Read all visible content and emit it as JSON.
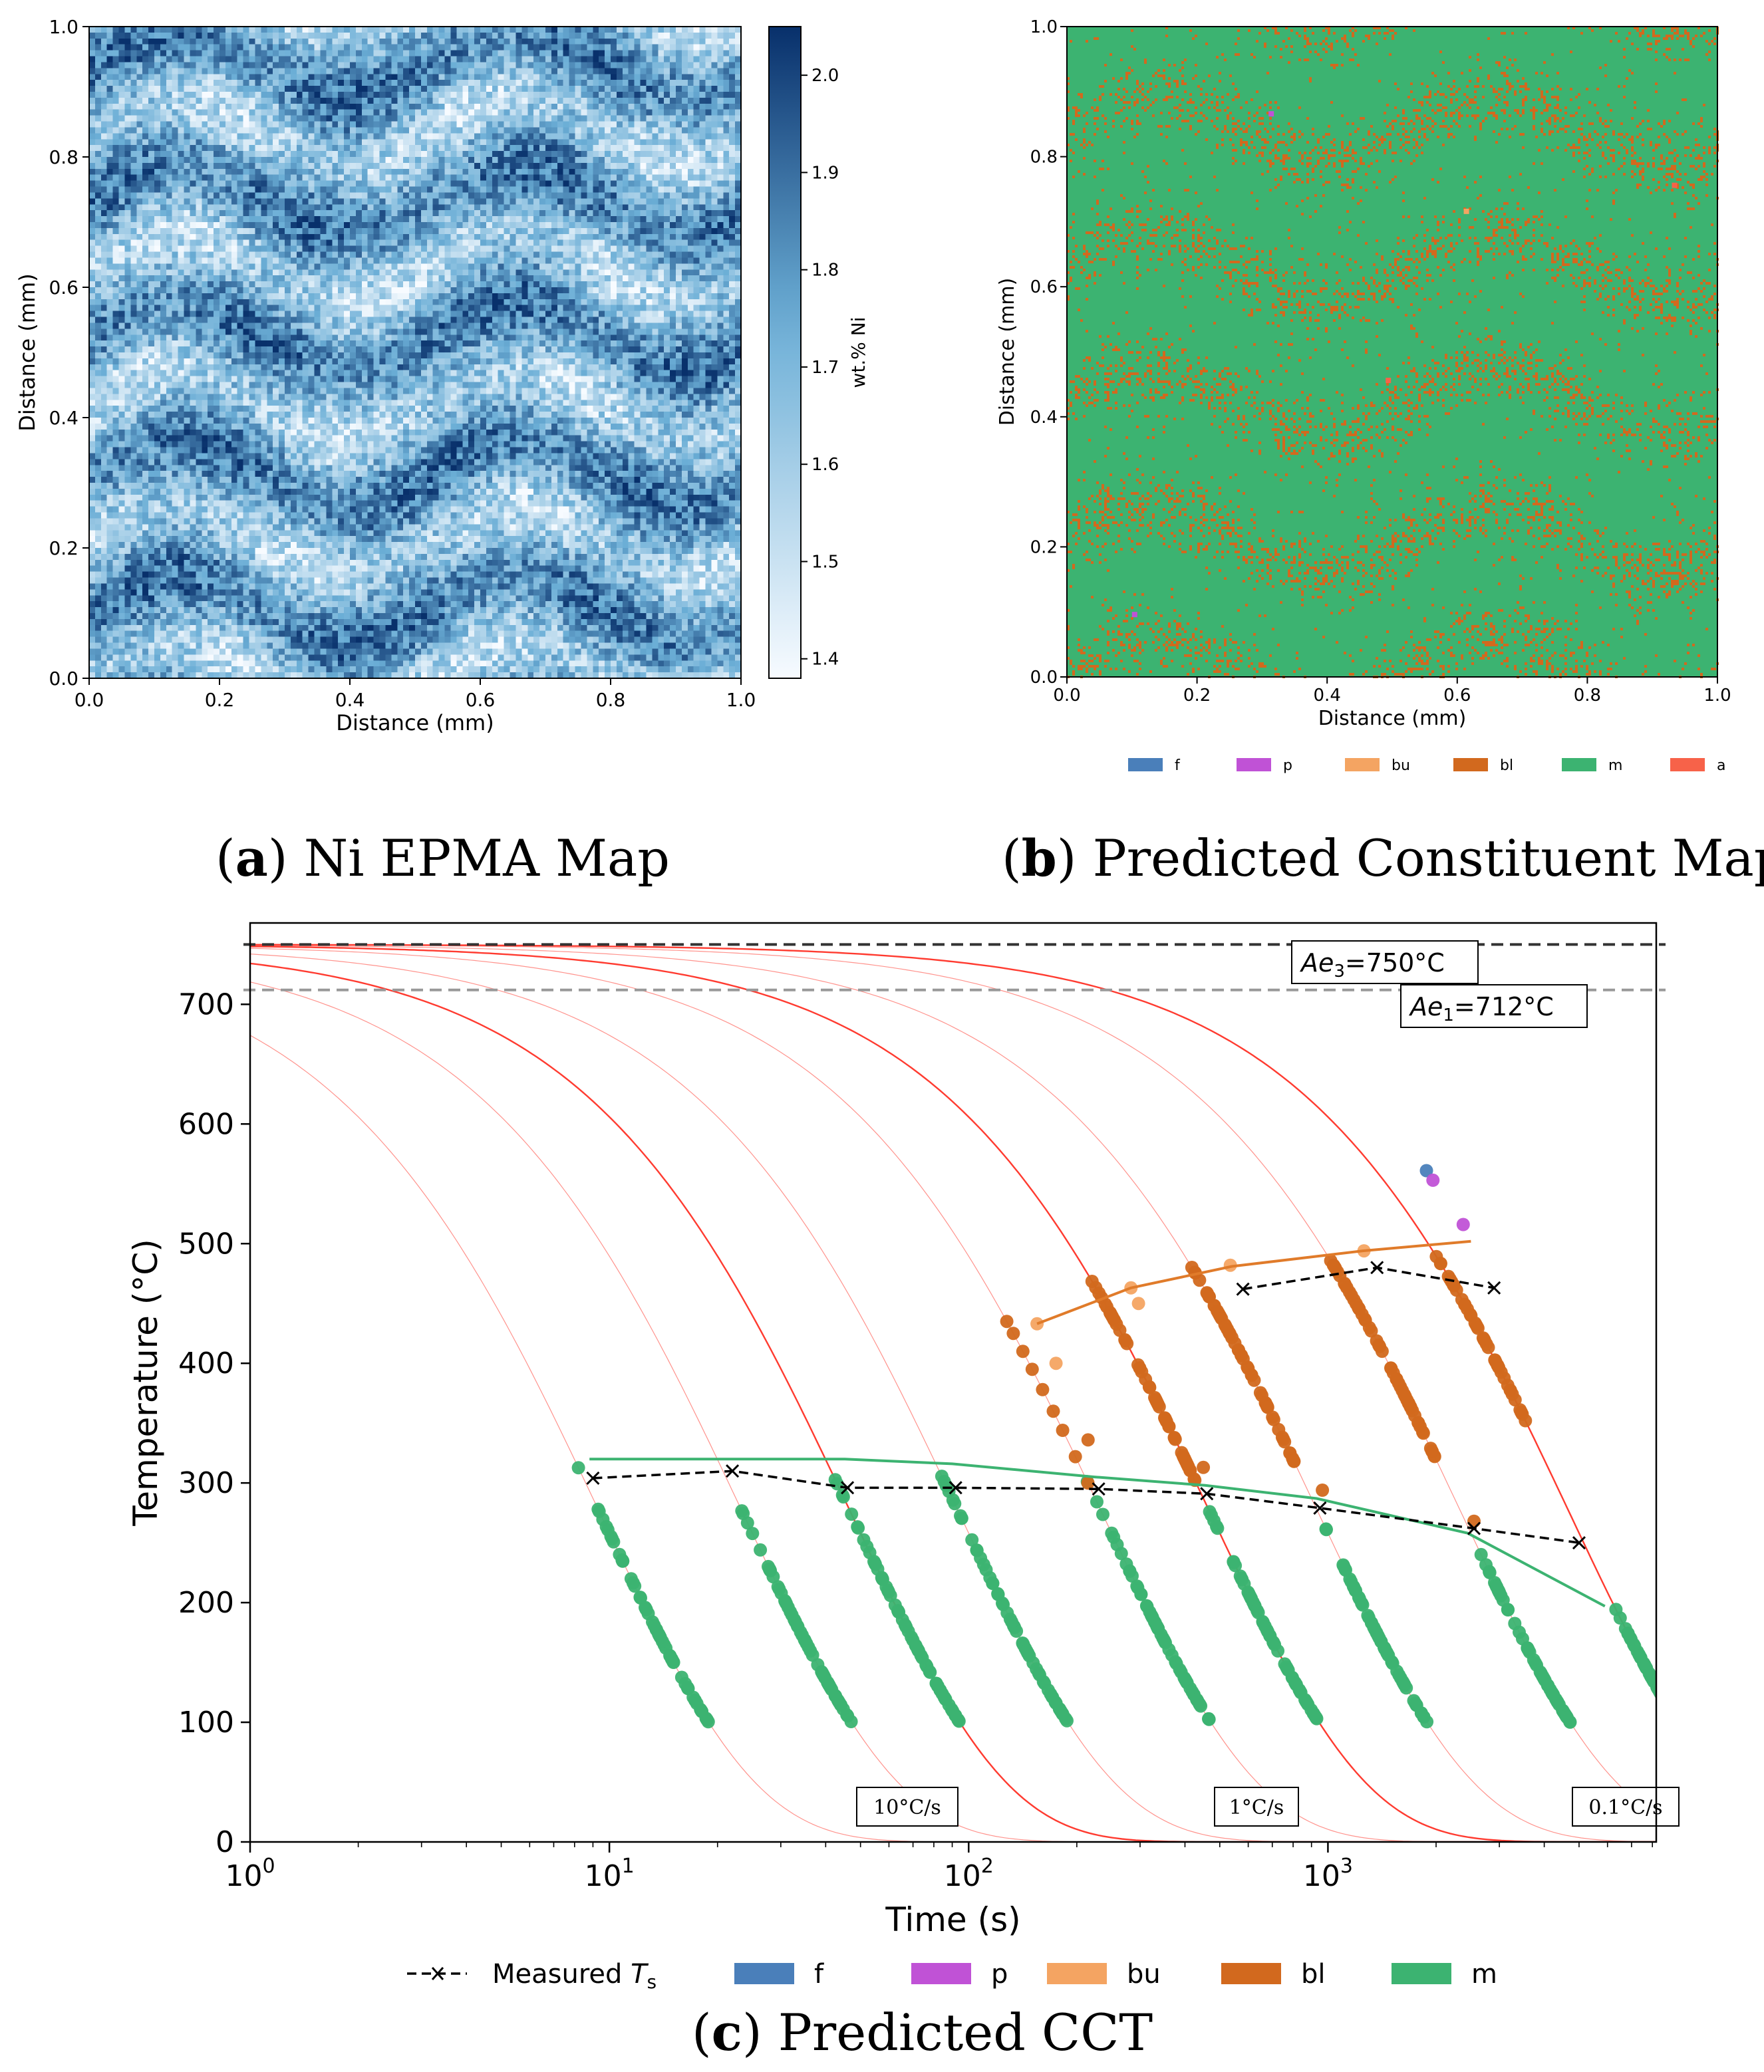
{
  "captions": {
    "a_letter": "a",
    "a_text": " Ni EPMA Map",
    "b_letter": "b",
    "b_text": " Predicted Constituent Map",
    "c_letter": "c",
    "c_text": " Predicted CCT"
  },
  "colors": {
    "f": "#4a7fba",
    "p": "#c052d6",
    "bu": "#f4a462",
    "bl": "#d2691e",
    "m": "#3cb371",
    "a": "#f76249",
    "measured": "#000000",
    "cooling_curve": "#ff3b30",
    "ae3_line": "#333333",
    "ae1_line": "#999999"
  },
  "chart_data": [
    {
      "id": "a",
      "type": "heatmap",
      "title": "",
      "xlabel": "Distance (mm)",
      "ylabel": "Distance (mm)",
      "xlim": [
        0,
        1
      ],
      "ylim": [
        0,
        1
      ],
      "xticks": [
        "0.0",
        "0.2",
        "0.4",
        "0.6",
        "0.8",
        "1.0"
      ],
      "yticks": [
        "0.0",
        "0.2",
        "0.4",
        "0.6",
        "0.8",
        "1.0"
      ],
      "colorbar": {
        "label": "wt.% Ni",
        "range": [
          1.38,
          2.05
        ],
        "ticks": [
          "1.4",
          "1.5",
          "1.6",
          "1.7",
          "1.8",
          "1.9",
          "2.0"
        ],
        "colormap": "Blues"
      },
      "grid": false
    },
    {
      "id": "b",
      "type": "heatmap",
      "title": "",
      "xlabel": "Distance (mm)",
      "ylabel": "Distance (mm)",
      "xlim": [
        0,
        1
      ],
      "ylim": [
        0,
        1
      ],
      "xticks": [
        "0.0",
        "0.2",
        "0.4",
        "0.6",
        "0.8",
        "1.0"
      ],
      "yticks": [
        "0.0",
        "0.2",
        "0.4",
        "0.6",
        "0.8",
        "1.0"
      ],
      "background_class": "m",
      "legend": [
        "f",
        "p",
        "bu",
        "bl",
        "m",
        "a"
      ],
      "legend_placement": "bottom",
      "grid": false
    },
    {
      "id": "c",
      "type": "scatter",
      "title": "",
      "xlabel": "Time (s)",
      "ylabel": "Temperature (°C)",
      "xscale": "log",
      "xlim": [
        1,
        8200
      ],
      "ylim": [
        0,
        768
      ],
      "xticks": [
        {
          "v": 1,
          "b": "10",
          "e": "0"
        },
        {
          "v": 10,
          "b": "10",
          "e": "1"
        },
        {
          "v": 100,
          "b": "10",
          "e": "2"
        },
        {
          "v": 1000,
          "b": "10",
          "e": "3"
        }
      ],
      "yticks": [
        0,
        100,
        200,
        300,
        400,
        500,
        600,
        700
      ],
      "hlines": [
        {
          "y": 750,
          "label_main": "Ae",
          "label_sub": "3",
          "label_tail": "=750°C",
          "style": "dark"
        },
        {
          "y": 712,
          "label_main": "Ae",
          "label_sub": "1",
          "label_tail": "=712°C",
          "style": "grey"
        }
      ],
      "cooling_rates": [
        {
          "rate": 50,
          "bold": false
        },
        {
          "rate": 20,
          "bold": false
        },
        {
          "rate": 10,
          "bold": true,
          "label": "10°C/s"
        },
        {
          "rate": 5,
          "bold": false
        },
        {
          "rate": 2,
          "bold": false
        },
        {
          "rate": 1,
          "bold": true,
          "label": "1°C/s"
        },
        {
          "rate": 0.5,
          "bold": false
        },
        {
          "rate": 0.2,
          "bold": false
        },
        {
          "rate": 0.1,
          "bold": true,
          "label": "0.1°C/s"
        }
      ],
      "ms_start": [
        {
          "rate": 50,
          "t": 8.8,
          "T": 320
        },
        {
          "rate": 20,
          "t": 22,
          "T": 320
        },
        {
          "rate": 10,
          "t": 45,
          "T": 320
        },
        {
          "rate": 5,
          "t": 90,
          "T": 316
        },
        {
          "rate": 2,
          "t": 225,
          "T": 305
        },
        {
          "rate": 1,
          "t": 455,
          "T": 298
        },
        {
          "rate": 0.5,
          "t": 930,
          "T": 287
        },
        {
          "rate": 0.2,
          "t": 2450,
          "T": 258
        },
        {
          "rate": 0.1,
          "t": 5900,
          "T": 197
        }
      ],
      "bs_start": [
        {
          "rate": 5,
          "t": 155,
          "T": 433
        },
        {
          "rate": 2,
          "t": 283,
          "T": 463
        },
        {
          "rate": 1,
          "t": 540,
          "T": 481
        },
        {
          "rate": 0.5,
          "t": 1250,
          "T": 494
        },
        {
          "rate": 0.2,
          "t": 2500,
          "T": 502
        }
      ],
      "measured_Ts": [
        {
          "t": 9,
          "T": 304
        },
        {
          "t": 22,
          "T": 310
        },
        {
          "t": 46,
          "T": 296
        },
        {
          "t": 92,
          "T": 296
        },
        {
          "t": 230,
          "T": 295
        },
        {
          "t": 460,
          "T": 291
        },
        {
          "t": 950,
          "T": 279
        },
        {
          "t": 2550,
          "T": 262
        },
        {
          "t": 5000,
          "T": 250
        }
      ],
      "measured_Ts_bainite": [
        {
          "t": 580,
          "T": 462
        },
        {
          "t": 1370,
          "T": 480
        },
        {
          "t": 2900,
          "T": 463
        }
      ],
      "extra_points": [
        {
          "cls": "bu",
          "t": 155,
          "T": 433
        },
        {
          "cls": "bu",
          "t": 175,
          "T": 400
        },
        {
          "cls": "bu",
          "t": 283,
          "T": 463
        },
        {
          "cls": "bu",
          "t": 297,
          "T": 450
        },
        {
          "cls": "bu",
          "t": 535,
          "T": 482
        },
        {
          "cls": "bu",
          "t": 1260,
          "T": 494
        },
        {
          "cls": "bl",
          "t": 215,
          "T": 336
        },
        {
          "cls": "bl",
          "t": 450,
          "T": 313
        },
        {
          "cls": "bl",
          "t": 965,
          "T": 294
        },
        {
          "cls": "bl",
          "t": 2550,
          "T": 268
        },
        {
          "cls": "f",
          "t": 1880,
          "T": 561
        },
        {
          "cls": "p",
          "t": 1960,
          "T": 553
        },
        {
          "cls": "p",
          "t": 2380,
          "T": 516
        }
      ],
      "legend": [
        {
          "key": "measured",
          "label_main": "Measured ",
          "label_italic": "T",
          "label_sub": "s"
        },
        {
          "key": "f",
          "label": "f"
        },
        {
          "key": "p",
          "label": "p"
        },
        {
          "key": "bu",
          "label": "bu"
        },
        {
          "key": "bl",
          "label": "bl"
        },
        {
          "key": "m",
          "label": "m"
        }
      ],
      "legend_placement": "bottom",
      "grid": false
    }
  ]
}
